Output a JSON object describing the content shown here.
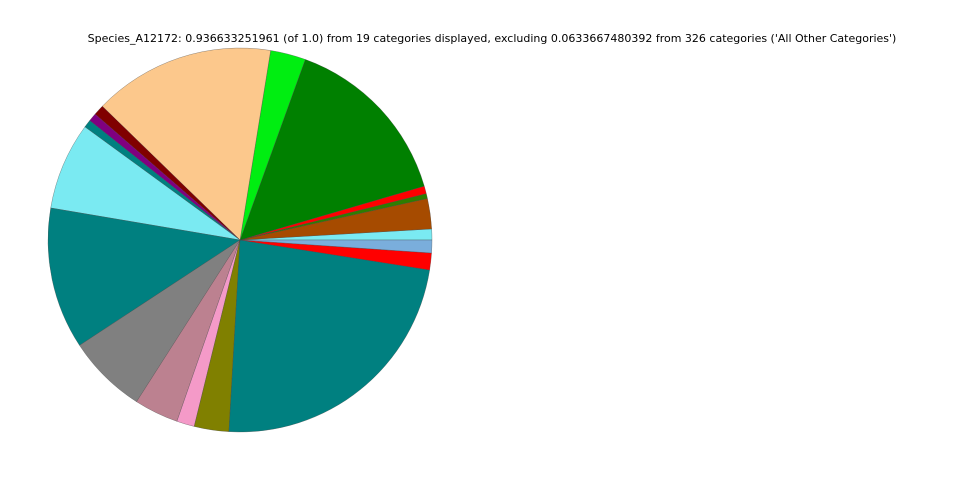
{
  "chart_data": {
    "type": "pie",
    "title": "Species_A12172: 0.936633251961 (of 1.0) from 19 categories displayed, excluding 0.0633667480392 from 326 categories ('All Other Categories')",
    "values": [
      0.0086,
      0.0239,
      0.0039,
      0.006,
      0.14,
      0.0278,
      0.1431,
      0.0083,
      0.0065,
      0.0062,
      0.0689,
      0.1116,
      0.0627,
      0.0349,
      0.014,
      0.0273,
      0.2193,
      0.0133,
      0.0101
    ],
    "colors": [
      "#7aeaf2",
      "#a64b00",
      "#2e7d00",
      "#ff0000",
      "#008000",
      "#00ee11",
      "#fcc88c",
      "#800000",
      "#800080",
      "#008080",
      "#7aeaf2",
      "#008080",
      "#808080",
      "#bc8190",
      "#f49ac8",
      "#808000",
      "#008080",
      "#ff0000",
      "#7aaedc"
    ]
  }
}
